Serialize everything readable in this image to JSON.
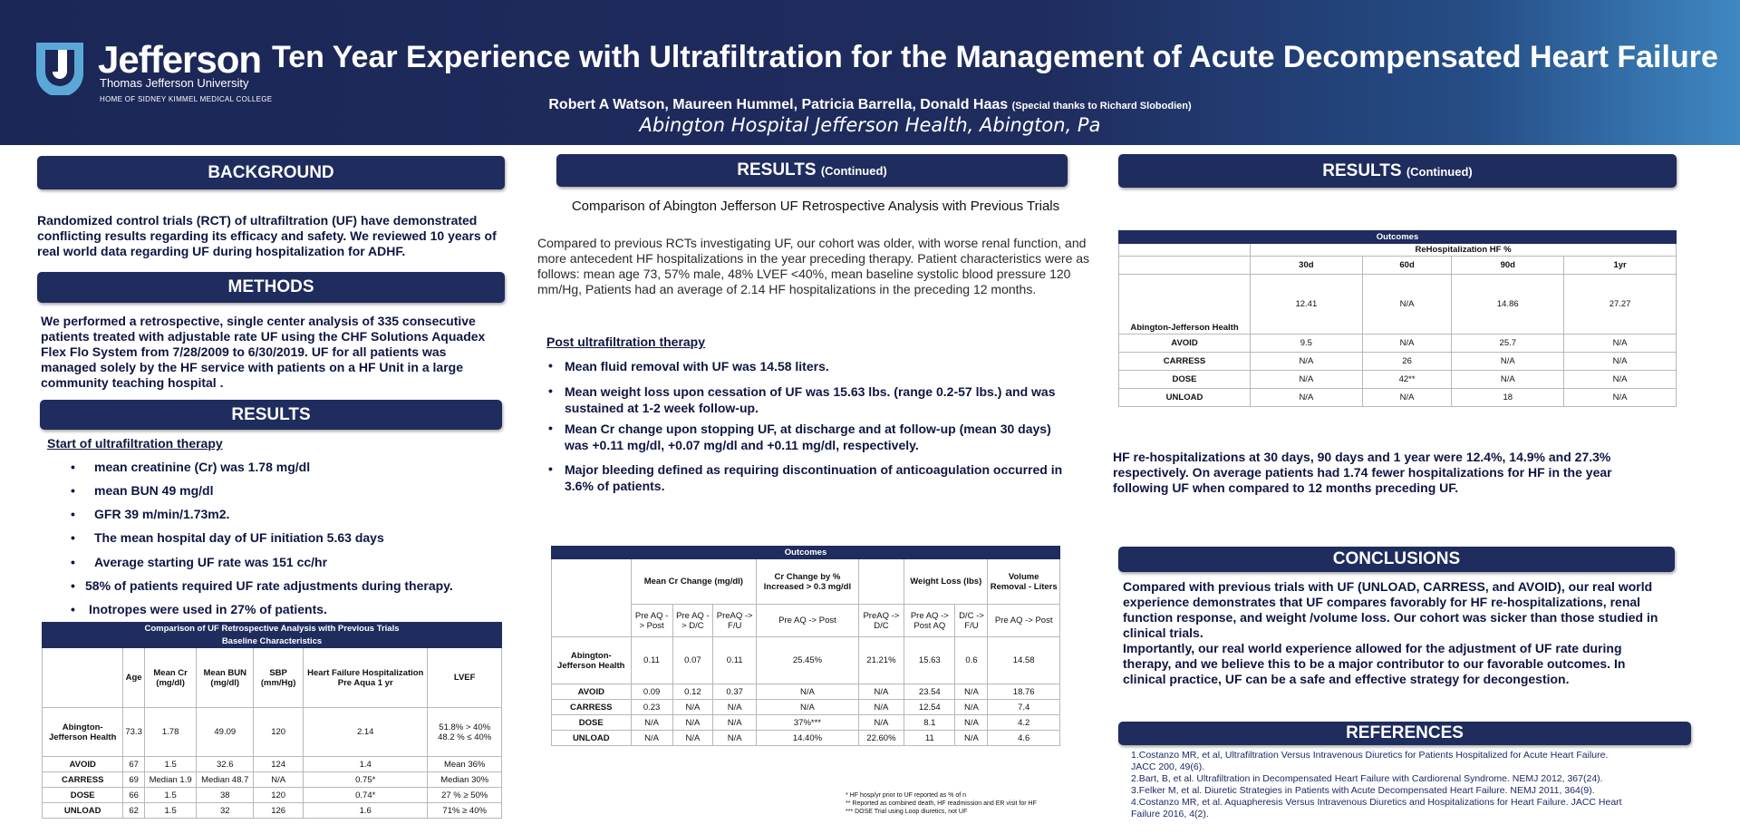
{
  "header": {
    "logo_word": "Jefferson",
    "logo_sub": "Thomas Jefferson University",
    "logo_sub2": "HOME OF SIDNEY KIMMEL MEDICAL COLLEGE",
    "title": "Ten Year Experience with Ultrafiltration for the Management of Acute Decompensated Heart Failure",
    "authors": "Robert A Watson, Maureen Hummel, Patricia Barrella, Donald Haas",
    "thanks": "(Special thanks to Richard Slobodien)",
    "affiliation": "Abington Hospital Jefferson Health, Abington, Pa"
  },
  "background": {
    "heading": "BACKGROUND",
    "text": "Randomized control trials (RCT) of ultrafiltration (UF) have demonstrated conflicting results regarding its efficacy and safety. We reviewed 10 years of real world data regarding UF during hospitalization for ADHF."
  },
  "methods": {
    "heading": "METHODS",
    "text": "We performed a retrospective, single center analysis of 335 consecutive patients treated with adjustable rate UF using the CHF Solutions Aquadex Flex Flo System from 7/28/2009 to 6/30/2019. UF for all patients was managed solely by the HF service with patients on a HF Unit in a large community teaching hospital ."
  },
  "results": {
    "heading": "RESULTS",
    "subheading": "Start of ultrafiltration therapy",
    "bullets": [
      "mean creatinine (Cr) was 1.78 mg/dl",
      "mean BUN 49 mg/dl",
      "GFR 39 m/min/1.73m2.",
      "The mean hospital day of UF initiation 5.63 days",
      "Average starting UF rate was 151 cc/hr",
      "58% of patients required UF rate adjustments during therapy.",
      "Inotropes were used in 27% of patients."
    ],
    "bullet_char": "•"
  },
  "baseline_table": {
    "title": "Comparison of UF Retrospective Analysis with Previous Trials",
    "subtitle": "Baseline Characteristics",
    "headers": [
      "Age",
      "Mean Cr (mg/dl)",
      "Mean BUN (mg/dl)",
      "SBP (mm/Hg)",
      "Heart Failure Hospitalization Pre Aqua 1 yr",
      "LVEF"
    ],
    "rows": [
      {
        "label": "Abington-Jefferson Health",
        "cells": [
          "73.3",
          "1.78",
          "49.09",
          "120",
          "2.14",
          "51.8% > 40%      48.2 % ≤ 40%"
        ]
      },
      {
        "label": "AVOID",
        "cells": [
          "67",
          "1.5",
          "32.6",
          "124",
          "1.4",
          "Mean 36%"
        ]
      },
      {
        "label": "CARRESS",
        "cells": [
          "69",
          "Median 1.9",
          "Median 48.7",
          "N/A",
          "0.75*",
          "Median 30%"
        ]
      },
      {
        "label": "DOSE",
        "cells": [
          "66",
          "1.5",
          "38",
          "120",
          "0.74*",
          "27 % ≥ 50%"
        ]
      },
      {
        "label": "UNLOAD",
        "cells": [
          "62",
          "1.5",
          "32",
          "126",
          "1.6",
          "71% ≥ 40%"
        ]
      }
    ]
  },
  "results_mid": {
    "heading": "RESULTS",
    "heading_suffix": "(Continued)",
    "subtitle": "Comparison of Abington Jefferson UF Retrospective Analysis with Previous Trials",
    "text": "Compared to previous RCTs investigating UF, our cohort was older, with worse renal function, and more antecedent HF hospitalizations in the year preceding therapy.  Patient characteristics were as follows: mean age 73, 57% male, 48% LVEF <40%, mean baseline systolic blood pressure 120 mm/Hg, Patients had an average of 2.14 HF hospitalizations in the preceding 12 months.",
    "subheading": "Post ultrafiltration therapy",
    "bullets": [
      "Mean fluid removal with UF was 14.58 liters.",
      "Mean weight loss upon cessation of UF was 15.63 lbs. (range 0.2-57 lbs.) and was sustained at 1-2 week follow-up.",
      "Mean Cr change upon stopping UF, at discharge and at follow-up (mean 30 days) was +0.11 mg/dl, +0.07 mg/dl and +0.11 mg/dl, respectively.",
      "Major bleeding defined as requiring discontinuation of anticoagulation occurred in 3.6% of patients."
    ]
  },
  "outcomes_mid": {
    "title": "Outcomes",
    "groups": [
      "Mean Cr Change (mg/dl)",
      "Cr Change by % Increased > 0.3 mg/dl",
      "Weight Loss (lbs)",
      "Volume Removal - Liters"
    ],
    "sub": [
      "Pre AQ -> Post",
      "Pre AQ -> D/C",
      "PreAQ -> F/U",
      "Pre AQ -> Post",
      "PreAQ -> D/C",
      "Pre AQ -> Post AQ",
      "D/C -> F/U",
      "Pre AQ -> Post"
    ],
    "rows": [
      {
        "label": "Abington-Jefferson Health",
        "cells": [
          "0.11",
          "0.07",
          "0.11",
          "25.45%",
          "21.21%",
          "15.63",
          "0.6",
          "14.58"
        ]
      },
      {
        "label": "AVOID",
        "cells": [
          "0.09",
          "0.12",
          "0.37",
          "N/A",
          "N/A",
          "23.54",
          "N/A",
          "18.76"
        ]
      },
      {
        "label": "CARRESS",
        "cells": [
          "0.23",
          "N/A",
          "N/A",
          "N/A",
          "N/A",
          "12.54",
          "N/A",
          "7.4"
        ]
      },
      {
        "label": "DOSE",
        "cells": [
          "N/A",
          "N/A",
          "N/A",
          "37%***",
          "N/A",
          "8.1",
          "N/A",
          "4.2"
        ]
      },
      {
        "label": "UNLOAD",
        "cells": [
          "N/A",
          "N/A",
          "N/A",
          "14.40%",
          "22.60%",
          "11",
          "N/A",
          "4.6"
        ]
      }
    ],
    "footnotes": [
      "* HF hosp/yr prior to UF reported as % of n",
      "** Reported as combined death, HF readmission and ER visit for HF",
      "*** DOSE Trial using Loop diuretics, not UF"
    ]
  },
  "results_right": {
    "heading": "RESULTS",
    "heading_suffix": "(Continued)",
    "text": "HF re-hospitalizations at 30 days, 90 days and 1 year were 12.4%, 14.9% and 27.3% respectively.  On average patients had 1.74 fewer hospitalizations for HF in the year following UF when compared to 12 months preceding UF."
  },
  "outcomes_right": {
    "title": "Outcomes",
    "group": "ReHospitalization HF %",
    "headers": [
      "30d",
      "60d",
      "90d",
      "1yr"
    ],
    "rows": [
      {
        "label": "Abington-Jefferson Health",
        "cells": [
          "12.41",
          "N/A",
          "14.86",
          "27.27"
        ]
      },
      {
        "label": "AVOID",
        "cells": [
          "9.5",
          "N/A",
          "25.7",
          "N/A"
        ]
      },
      {
        "label": "CARRESS",
        "cells": [
          "N/A",
          "26",
          "N/A",
          "N/A"
        ]
      },
      {
        "label": "DOSE",
        "cells": [
          "N/A",
          "42**",
          "N/A",
          "N/A"
        ]
      },
      {
        "label": "UNLOAD",
        "cells": [
          "N/A",
          "N/A",
          "18",
          "N/A"
        ]
      }
    ]
  },
  "conclusions": {
    "heading": "CONCLUSIONS",
    "text1": "Compared with previous trials with UF (UNLOAD, CARRESS, and AVOID), our real world experience demonstrates that UF compares favorably for HF re-hospitalizations, renal function response, and weight /volume loss. Our cohort was sicker than those studied in clinical trials.",
    "text2": "Importantly, our real world experience allowed for the adjustment of UF rate during therapy, and we believe this to be a major contributor to our favorable outcomes.  In clinical practice, UF can be a safe and effective strategy for decongestion."
  },
  "references": {
    "heading": "REFERENCES",
    "items": [
      "1.Costanzo MR, et al, Ultrafiltration Versus Intravenous Diuretics for Patients Hospitalized for Acute Heart Failure. JACC 200, 49(6).",
      "2.Bart, B, et al. Ultrafiltration in Decompensated Heart Failure with Cardiorenal Syndrome. NEMJ 2012, 367(24).",
      "3.Felker M, et al. Diuretic Strategies in Patients with Acute Decompensated Heart Failure. NEMJ 2011, 364(9).",
      "4.Costanzo MR, et al. Aquapheresis Versus Intravenous Diuretics and Hospitalizations for Heart Failure. JACC Heart Failure 2016, 4(2)."
    ]
  },
  "colors": {
    "navy": "#1f2c5e",
    "header_light": "#3f88c2",
    "text_navy": "#0e1642"
  }
}
